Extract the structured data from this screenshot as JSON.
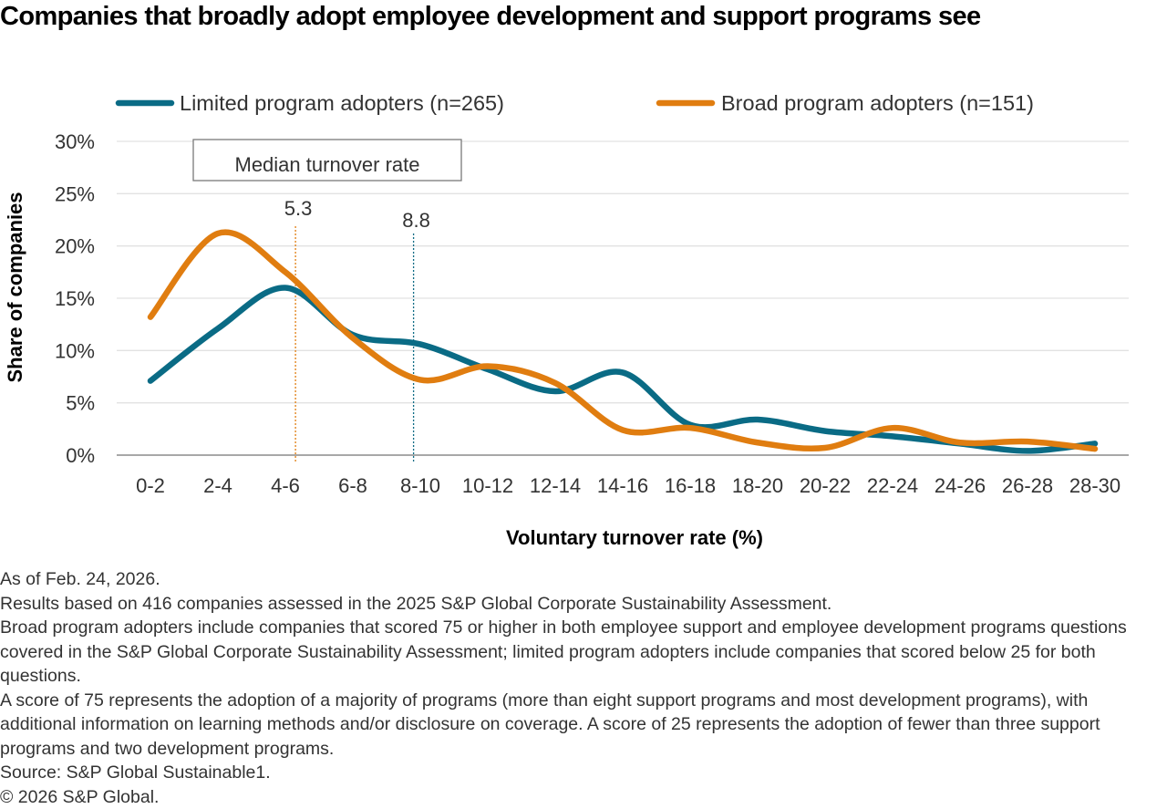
{
  "title": "Companies that broadly adopt employee development and support programs see",
  "colors": {
    "limited": "#0a6b85",
    "broad": "#e07d10",
    "grid": "#e2e2e2",
    "axis": "#a8a8a8",
    "text": "#333333"
  },
  "annotation": {
    "box_label": "Median turnover rate",
    "medians": [
      {
        "series": "Broad program adopters (n=151)",
        "value": 5.3,
        "label": "5.3"
      },
      {
        "series": "Limited program adopters (n=265)",
        "value": 8.8,
        "label": "8.8"
      }
    ]
  },
  "chart_data": {
    "type": "line",
    "title": "Companies that broadly adopt employee development and support programs see",
    "xlabel": "Voluntary turnover rate (%)",
    "ylabel": "Share of companies",
    "categories": [
      "0-2",
      "2-4",
      "4-6",
      "6-8",
      "8-10",
      "10-12",
      "12-14",
      "14-16",
      "16-18",
      "18-20",
      "20-22",
      "22-24",
      "24-26",
      "26-28",
      "28-30"
    ],
    "yticks": [
      "0%",
      "5%",
      "10%",
      "15%",
      "20%",
      "25%",
      "30%"
    ],
    "ylim": [
      0,
      30
    ],
    "grid": true,
    "legend_position": "top",
    "series": [
      {
        "name": "Limited program adopters (n=265)",
        "color": "#0a6b85",
        "values": [
          7.1,
          12.1,
          16.0,
          11.5,
          10.6,
          8.2,
          6.1,
          7.9,
          2.9,
          3.4,
          2.3,
          1.8,
          1.1,
          0.4,
          1.1
        ]
      },
      {
        "name": "Broad program adopters (n=151)",
        "color": "#e07d10",
        "values": [
          13.2,
          21.2,
          17.5,
          11.2,
          7.2,
          8.5,
          6.9,
          2.4,
          2.6,
          1.2,
          0.7,
          2.6,
          1.2,
          1.3,
          0.6
        ]
      }
    ]
  },
  "footer": {
    "lines": [
      "As of Feb. 24, 2026.",
      "Results based on 416 companies assessed in the 2025 S&P Global Corporate Sustainability Assessment.",
      "Broad program adopters include companies that scored 75 or higher in both employee support and employee development programs questions covered in the S&P Global Corporate Sustainability Assessment; limited program adopters include companies that scored below 25 for both questions.",
      "A score of 75 represents the adoption of a majority of programs (more than eight support programs and most development programs), with additional information on learning methods and/or disclosure on coverage. A score of 25 represents the adoption of fewer than three support programs and two development programs.",
      "Source: S&P Global Sustainable1.",
      "© 2026 S&P Global."
    ]
  }
}
